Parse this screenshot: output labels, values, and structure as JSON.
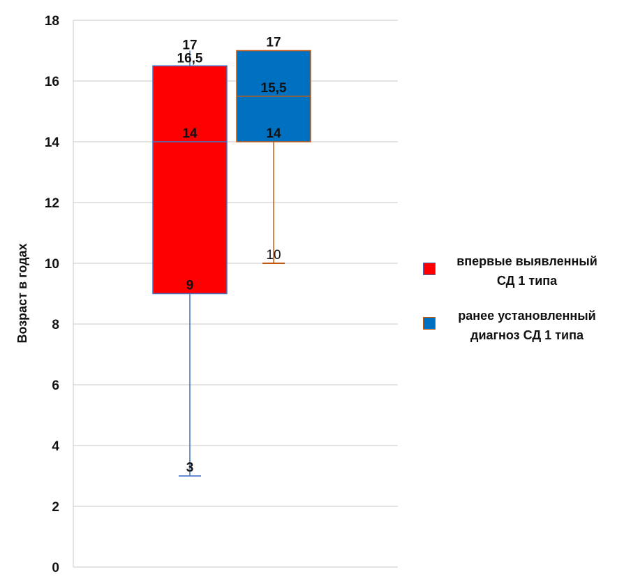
{
  "chart_data": {
    "type": "boxplot",
    "ylabel": "Возраст в годах",
    "ylim": [
      0,
      18
    ],
    "yticks": [
      "0",
      "2",
      "4",
      "6",
      "8",
      "10",
      "12",
      "14",
      "16",
      "18"
    ],
    "grid": true,
    "legend_position": "right",
    "series": [
      {
        "name": "впервые выявленный СД 1 типа",
        "color": "#ff0000",
        "whisker_color": "#4472c4",
        "min": 3,
        "q1": 9,
        "median": 14,
        "q3": 16.5,
        "max": 17,
        "labels": {
          "max": "17",
          "q3": "16,5",
          "median": "14",
          "q1": "9",
          "min": "3"
        }
      },
      {
        "name": "ранее установленный диагноз СД 1 типа",
        "color": "#0070c0",
        "whisker_color": "#c55a11",
        "min": 10,
        "q1": 14,
        "median": 15.5,
        "q3": 17,
        "max": 17,
        "labels": {
          "max": "17",
          "median": "15,5",
          "q1": "14",
          "min": "10"
        }
      }
    ],
    "legend": [
      {
        "text": "впервые выявленный\nСД 1 типа",
        "color": "#ff0000"
      },
      {
        "text": "ранее установленный\nдиагноз СД 1 типа",
        "color": "#0070c0"
      }
    ]
  }
}
